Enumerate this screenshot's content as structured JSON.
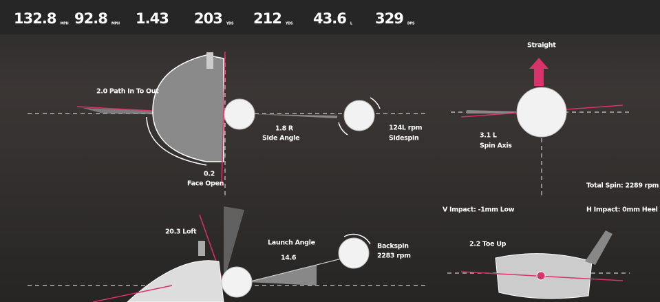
{
  "stats": [
    {
      "value": "132.8",
      "unit": "MPH"
    },
    {
      "value": "92.8",
      "unit": "MPH"
    },
    {
      "value": "1.43"
    },
    {
      "value": "203",
      "unit": "YDS"
    },
    {
      "value": "212",
      "unit": "YDS"
    },
    {
      "value": "43.6",
      "unit": "L"
    },
    {
      "value": "329",
      "unit": "DPS"
    }
  ],
  "top_view": {
    "path": "2.0 Path In To Out",
    "side_angle_value": "1.8 R",
    "side_angle_label": "Side Angle",
    "sidespin_value": "124L rpm",
    "sidespin_label": "Sidespin",
    "face_value": "0.2",
    "face_label": "Face Open"
  },
  "spin_axis": {
    "direction": "Straight",
    "value": "3.1 L",
    "label": "Spin Axis",
    "total_spin": "Total Spin: 2289 rpm"
  },
  "impact": {
    "vertical": "V Impact: -1mm Low",
    "horizontal": "H Impact: 0mm Heel",
    "toe": "2.2 Toe Up"
  },
  "side_view": {
    "loft": "20.3 Loft",
    "launch_label": "Launch Angle",
    "launch_value": "14.6",
    "backspin_label": "Backspin",
    "backspin_value": "2283 rpm"
  }
}
